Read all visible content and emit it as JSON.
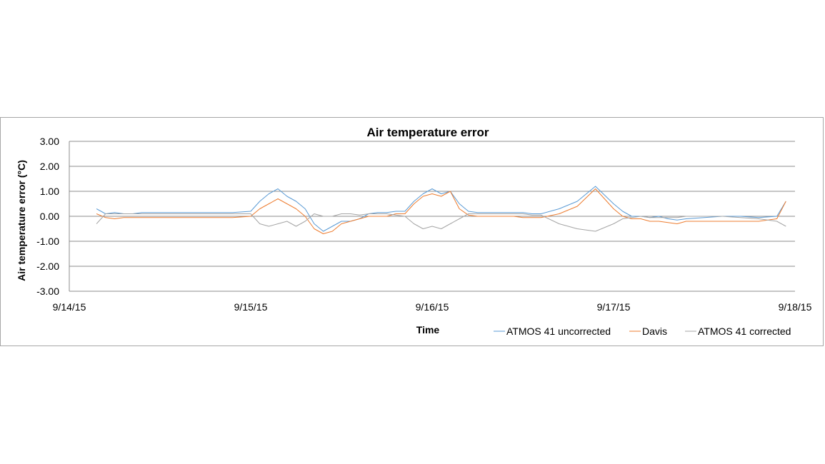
{
  "chart_data": {
    "type": "line",
    "title": "Air temperature error",
    "xlabel": "Time",
    "ylabel": "Air temperature error (°C)",
    "ylim": [
      -3,
      3
    ],
    "y_ticks": [
      3,
      2,
      1,
      0,
      -1,
      -2,
      -3
    ],
    "y_tick_labels": [
      "3.00",
      "2.00",
      "1.00",
      "0.00",
      "-1.00",
      "-2.00",
      "-3.00"
    ],
    "x_tick_labels": [
      "9/14/15",
      "9/15/15",
      "9/16/15",
      "9/17/15",
      "9/18/15"
    ],
    "x_ticks": [
      0,
      1,
      2,
      3,
      4
    ],
    "xlim": [
      0,
      4
    ],
    "grid": "horizontal",
    "legend_position": "bottom-right",
    "series": [
      {
        "name": "ATMOS 41 uncorrected",
        "color": "#5b9bd5",
        "x": [
          0.15,
          0.2,
          0.25,
          0.3,
          0.35,
          0.4,
          0.5,
          0.6,
          0.7,
          0.8,
          0.9,
          1.0,
          1.05,
          1.1,
          1.15,
          1.2,
          1.25,
          1.3,
          1.35,
          1.4,
          1.45,
          1.5,
          1.55,
          1.6,
          1.65,
          1.7,
          1.75,
          1.8,
          1.85,
          1.9,
          1.95,
          2.0,
          2.05,
          2.1,
          2.15,
          2.2,
          2.25,
          2.3,
          2.35,
          2.4,
          2.45,
          2.5,
          2.55,
          2.6,
          2.7,
          2.8,
          2.9,
          3.0,
          3.05,
          3.1,
          3.15,
          3.2,
          3.25,
          3.3,
          3.35,
          3.4,
          3.5,
          3.6,
          3.7,
          3.8,
          3.9,
          3.95
        ],
        "y": [
          0.3,
          0.1,
          0.15,
          0.1,
          0.1,
          0.15,
          0.15,
          0.15,
          0.15,
          0.15,
          0.15,
          0.2,
          0.6,
          0.9,
          1.1,
          0.8,
          0.6,
          0.3,
          -0.3,
          -0.6,
          -0.4,
          -0.2,
          -0.2,
          -0.1,
          0.1,
          0.15,
          0.15,
          0.2,
          0.2,
          0.6,
          0.9,
          1.1,
          0.9,
          1.0,
          0.5,
          0.2,
          0.15,
          0.15,
          0.15,
          0.15,
          0.15,
          0.15,
          0.1,
          0.1,
          0.3,
          0.6,
          1.2,
          0.5,
          0.2,
          0.0,
          0.0,
          -0.05,
          0.0,
          -0.1,
          -0.15,
          -0.1,
          -0.05,
          0.0,
          0.0,
          -0.05,
          0.0,
          0.6
        ]
      },
      {
        "name": "Davis",
        "color": "#ed7d31",
        "x": [
          0.15,
          0.2,
          0.25,
          0.3,
          0.35,
          0.4,
          0.5,
          0.6,
          0.7,
          0.8,
          0.9,
          1.0,
          1.05,
          1.1,
          1.15,
          1.2,
          1.25,
          1.3,
          1.35,
          1.4,
          1.45,
          1.5,
          1.55,
          1.6,
          1.65,
          1.7,
          1.75,
          1.8,
          1.85,
          1.9,
          1.95,
          2.0,
          2.05,
          2.1,
          2.15,
          2.2,
          2.25,
          2.3,
          2.35,
          2.4,
          2.45,
          2.5,
          2.55,
          2.6,
          2.7,
          2.8,
          2.9,
          3.0,
          3.05,
          3.1,
          3.15,
          3.2,
          3.25,
          3.3,
          3.35,
          3.4,
          3.5,
          3.6,
          3.7,
          3.8,
          3.9,
          3.95
        ],
        "y": [
          0.1,
          -0.05,
          -0.1,
          -0.05,
          -0.05,
          -0.05,
          -0.05,
          -0.05,
          -0.05,
          -0.05,
          -0.05,
          0.0,
          0.3,
          0.5,
          0.7,
          0.5,
          0.3,
          0.0,
          -0.5,
          -0.7,
          -0.6,
          -0.3,
          -0.2,
          -0.1,
          0.0,
          0.0,
          0.0,
          0.1,
          0.1,
          0.5,
          0.8,
          0.9,
          0.8,
          1.0,
          0.3,
          0.05,
          0.0,
          0.0,
          0.0,
          0.0,
          0.0,
          -0.05,
          -0.05,
          -0.05,
          0.1,
          0.4,
          1.1,
          0.3,
          0.0,
          -0.1,
          -0.1,
          -0.2,
          -0.2,
          -0.25,
          -0.3,
          -0.2,
          -0.2,
          -0.2,
          -0.2,
          -0.2,
          -0.1,
          0.6
        ]
      },
      {
        "name": "ATMOS 41 corrected",
        "color": "#a5a5a5",
        "x": [
          0.15,
          0.2,
          0.25,
          0.3,
          0.35,
          0.4,
          0.5,
          0.6,
          0.7,
          0.8,
          0.9,
          1.0,
          1.05,
          1.1,
          1.15,
          1.2,
          1.25,
          1.3,
          1.35,
          1.4,
          1.45,
          1.5,
          1.55,
          1.6,
          1.65,
          1.7,
          1.75,
          1.8,
          1.85,
          1.9,
          1.95,
          2.0,
          2.05,
          2.1,
          2.15,
          2.2,
          2.25,
          2.3,
          2.35,
          2.4,
          2.45,
          2.5,
          2.55,
          2.6,
          2.7,
          2.8,
          2.9,
          3.0,
          3.05,
          3.1,
          3.15,
          3.2,
          3.25,
          3.3,
          3.35,
          3.4,
          3.5,
          3.6,
          3.7,
          3.8,
          3.9,
          3.95
        ],
        "y": [
          -0.3,
          0.1,
          0.1,
          0.1,
          0.1,
          0.1,
          0.1,
          0.1,
          0.1,
          0.1,
          0.1,
          0.1,
          -0.3,
          -0.4,
          -0.3,
          -0.2,
          -0.4,
          -0.2,
          0.1,
          0.0,
          0.0,
          0.1,
          0.1,
          0.05,
          0.1,
          0.1,
          0.1,
          0.05,
          0.0,
          -0.3,
          -0.5,
          -0.4,
          -0.5,
          -0.3,
          -0.1,
          0.1,
          0.1,
          0.1,
          0.1,
          0.1,
          0.1,
          0.1,
          0.05,
          0.05,
          -0.3,
          -0.5,
          -0.6,
          -0.3,
          -0.1,
          -0.05,
          0.0,
          -0.05,
          -0.05,
          -0.05,
          -0.05,
          0.0,
          0.0,
          0.0,
          -0.05,
          -0.1,
          -0.2,
          -0.4
        ]
      }
    ]
  }
}
